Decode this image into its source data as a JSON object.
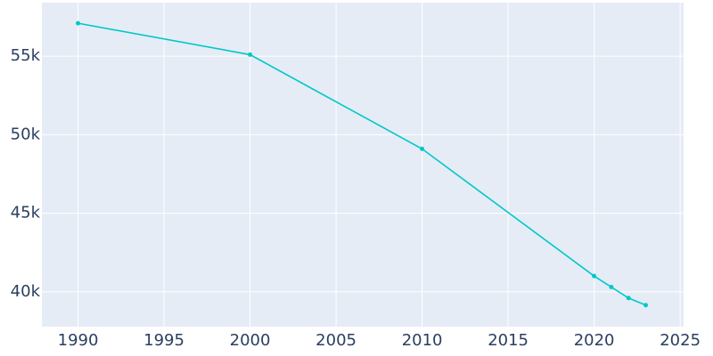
{
  "chart_data": {
    "type": "line",
    "x": [
      1990,
      2000,
      2010,
      2020,
      2021,
      2022,
      2023
    ],
    "series": [
      {
        "color": "#00c8c8",
        "values": [
          57100,
          55100,
          49100,
          41000,
          40300,
          39600,
          39150
        ]
      }
    ],
    "xlim": [
      1987.9,
      2025.2
    ],
    "ylim": [
      37780,
      58410
    ],
    "xticks": [
      1990,
      1995,
      2000,
      2005,
      2010,
      2015,
      2020,
      2025
    ],
    "yticks": [
      {
        "value": 40000,
        "label": "40k"
      },
      {
        "value": 45000,
        "label": "45k"
      },
      {
        "value": 50000,
        "label": "50k"
      },
      {
        "value": 55000,
        "label": "55k"
      }
    ],
    "grid": true
  }
}
